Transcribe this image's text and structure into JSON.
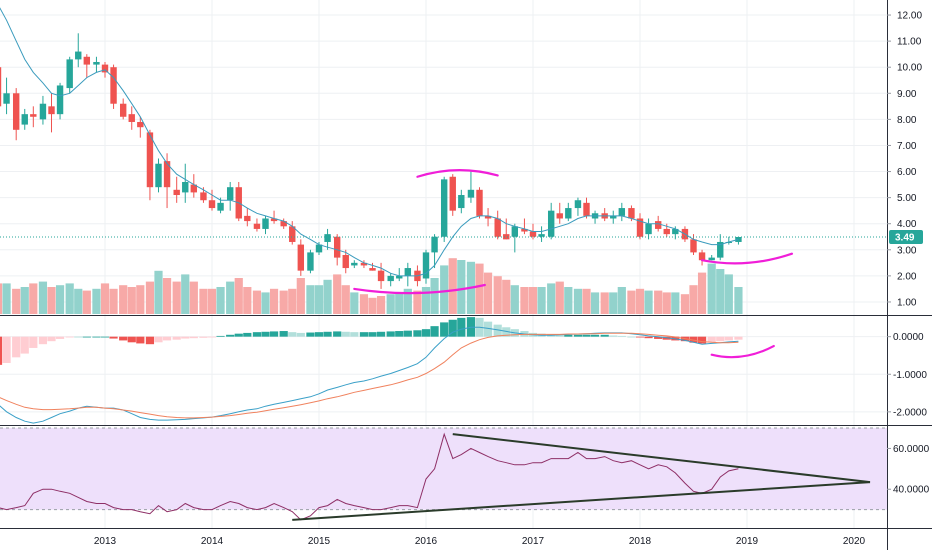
{
  "chart_data": {
    "type": "candlestick",
    "x_labels": [
      "2013",
      "2014",
      "2015",
      "2016",
      "2017",
      "2018",
      "2019",
      "2020"
    ],
    "last_price": "3.49",
    "colors": {
      "up": "#26a69a",
      "down": "#ef5350",
      "vol_up": "#92d2cc",
      "vol_down": "#f7a9a7",
      "ma": "#3a9bbd",
      "macd": "#3aa0c8",
      "signal": "#f0825e",
      "rsi": "#8e2f66",
      "rsi_band": "#eee0fb",
      "annotation": "#f01ed8",
      "trendline": "#2a3b2a"
    },
    "price_panel": {
      "ylim": [
        0.5,
        12.5
      ],
      "y_ticks": [
        "1.00",
        "2.00",
        "3.00",
        "4.00",
        "5.00",
        "6.00",
        "7.00",
        "8.00",
        "9.00",
        "10.00",
        "11.00",
        "12.00"
      ],
      "candles": [
        [
          2012.0,
          10.0,
          10.1,
          8.0,
          8.5
        ],
        [
          2012.08,
          8.6,
          9.6,
          8.2,
          9.0
        ],
        [
          2012.17,
          9.0,
          9.2,
          7.2,
          7.6
        ],
        [
          2012.25,
          7.8,
          8.4,
          7.6,
          8.2
        ],
        [
          2012.33,
          8.2,
          8.5,
          7.7,
          8.1
        ],
        [
          2012.42,
          8.0,
          8.9,
          7.8,
          8.6
        ],
        [
          2012.5,
          8.5,
          9.0,
          7.5,
          8.2
        ],
        [
          2012.58,
          8.2,
          9.4,
          8.0,
          9.3
        ],
        [
          2012.67,
          9.2,
          10.4,
          9.0,
          10.3
        ],
        [
          2012.75,
          10.3,
          11.3,
          10.0,
          10.6
        ],
        [
          2012.83,
          10.4,
          10.5,
          9.6,
          10.1
        ],
        [
          2012.92,
          10.1,
          10.4,
          9.8,
          10.2
        ],
        [
          2013.0,
          10.1,
          10.2,
          9.6,
          9.8
        ],
        [
          2013.08,
          10.0,
          10.1,
          8.4,
          8.6
        ],
        [
          2013.17,
          8.6,
          8.8,
          8.0,
          8.1
        ],
        [
          2013.25,
          8.2,
          8.5,
          7.6,
          7.9
        ],
        [
          2013.33,
          7.9,
          8.1,
          7.3,
          7.7
        ],
        [
          2013.42,
          7.5,
          7.6,
          4.9,
          5.4
        ],
        [
          2013.5,
          5.4,
          6.5,
          5.2,
          6.3
        ],
        [
          2013.58,
          6.4,
          6.7,
          4.6,
          5.4
        ],
        [
          2013.67,
          5.3,
          5.8,
          4.8,
          5.1
        ],
        [
          2013.75,
          5.2,
          6.3,
          4.8,
          5.6
        ],
        [
          2013.83,
          5.5,
          5.9,
          5.0,
          5.2
        ],
        [
          2013.92,
          5.2,
          5.4,
          4.8,
          4.9
        ],
        [
          2014.0,
          4.9,
          5.3,
          4.5,
          4.6
        ],
        [
          2014.08,
          4.5,
          5.0,
          4.4,
          4.8
        ],
        [
          2014.17,
          4.9,
          5.6,
          4.5,
          5.4
        ],
        [
          2014.25,
          5.4,
          5.6,
          4.1,
          4.2
        ],
        [
          2014.33,
          4.3,
          4.6,
          3.9,
          4.1
        ],
        [
          2014.42,
          4.0,
          4.2,
          3.7,
          3.8
        ],
        [
          2014.5,
          3.8,
          4.3,
          3.6,
          4.2
        ],
        [
          2014.58,
          4.2,
          4.5,
          4.0,
          4.1
        ],
        [
          2014.67,
          4.1,
          4.2,
          3.8,
          3.9
        ],
        [
          2014.75,
          3.9,
          4.1,
          3.2,
          3.3
        ],
        [
          2014.83,
          3.2,
          3.4,
          2.0,
          2.2
        ],
        [
          2014.92,
          2.2,
          3.0,
          2.1,
          2.9
        ],
        [
          2015.0,
          2.9,
          3.3,
          2.8,
          3.2
        ],
        [
          2015.08,
          3.3,
          3.8,
          3.0,
          3.6
        ],
        [
          2015.17,
          3.5,
          3.6,
          2.4,
          2.7
        ],
        [
          2015.25,
          2.8,
          3.0,
          2.1,
          2.3
        ],
        [
          2015.33,
          2.4,
          2.6,
          2.3,
          2.5
        ],
        [
          2015.42,
          2.5,
          2.6,
          2.3,
          2.4
        ],
        [
          2015.5,
          2.3,
          2.5,
          2.2,
          2.2
        ],
        [
          2015.58,
          2.2,
          2.5,
          1.5,
          1.8
        ],
        [
          2015.67,
          1.8,
          2.1,
          1.6,
          2.0
        ],
        [
          2015.75,
          1.9,
          2.3,
          1.8,
          2.0
        ],
        [
          2015.83,
          2.0,
          2.5,
          1.6,
          2.3
        ],
        [
          2015.92,
          2.2,
          2.4,
          1.6,
          1.8
        ],
        [
          2016.0,
          1.9,
          3.0,
          1.7,
          2.9
        ],
        [
          2016.08,
          2.9,
          3.6,
          2.3,
          3.5
        ],
        [
          2016.17,
          3.5,
          5.8,
          3.3,
          5.7
        ],
        [
          2016.25,
          5.8,
          5.9,
          4.3,
          4.5
        ],
        [
          2016.33,
          4.6,
          5.3,
          4.4,
          5.1
        ],
        [
          2016.42,
          5.0,
          6.0,
          4.8,
          5.3
        ],
        [
          2016.5,
          5.3,
          5.4,
          4.2,
          4.3
        ],
        [
          2016.58,
          4.3,
          4.6,
          3.9,
          4.2
        ],
        [
          2016.67,
          4.2,
          4.5,
          3.4,
          3.5
        ],
        [
          2016.75,
          3.6,
          4.2,
          3.4,
          3.4
        ],
        [
          2016.83,
          3.5,
          4.0,
          2.9,
          3.9
        ],
        [
          2016.92,
          3.8,
          4.2,
          3.6,
          3.7
        ],
        [
          2017.0,
          3.7,
          4.0,
          3.4,
          3.5
        ],
        [
          2017.08,
          3.5,
          3.9,
          3.3,
          3.6
        ],
        [
          2017.17,
          3.5,
          4.8,
          3.4,
          4.5
        ],
        [
          2017.25,
          4.4,
          4.8,
          4.0,
          4.2
        ],
        [
          2017.33,
          4.2,
          4.8,
          4.1,
          4.6
        ],
        [
          2017.42,
          4.6,
          5.0,
          4.3,
          4.9
        ],
        [
          2017.5,
          4.8,
          5.0,
          4.2,
          4.3
        ],
        [
          2017.58,
          4.2,
          4.5,
          4.0,
          4.4
        ],
        [
          2017.67,
          4.4,
          4.6,
          4.1,
          4.2
        ],
        [
          2017.75,
          4.2,
          4.5,
          4.0,
          4.3
        ],
        [
          2017.83,
          4.3,
          4.8,
          4.1,
          4.6
        ],
        [
          2017.92,
          4.6,
          4.7,
          4.1,
          4.2
        ],
        [
          2018.0,
          4.2,
          4.4,
          3.4,
          3.5
        ],
        [
          2018.08,
          3.6,
          4.2,
          3.4,
          4.0
        ],
        [
          2018.17,
          4.1,
          4.3,
          3.7,
          3.8
        ],
        [
          2018.25,
          3.8,
          4.0,
          3.5,
          3.6
        ],
        [
          2018.33,
          3.6,
          3.9,
          3.4,
          3.8
        ],
        [
          2018.42,
          3.8,
          3.9,
          3.3,
          3.4
        ],
        [
          2018.5,
          3.4,
          3.6,
          2.8,
          2.9
        ],
        [
          2018.58,
          2.9,
          3.0,
          2.4,
          2.6
        ],
        [
          2018.67,
          2.6,
          2.8,
          2.6,
          2.7
        ],
        [
          2018.75,
          2.7,
          3.6,
          2.6,
          3.3
        ],
        [
          2018.83,
          3.3,
          3.5,
          3.2,
          3.3
        ],
        [
          2018.92,
          3.3,
          3.5,
          3.2,
          3.49
        ]
      ]
    },
    "volume": [
      1.7,
      1.7,
      1.4,
      1.5,
      1.7,
      1.8,
      1.5,
      1.6,
      1.7,
      1.4,
      1.3,
      1.4,
      1.7,
      1.4,
      1.6,
      1.5,
      1.6,
      1.8,
      2.4,
      2.0,
      1.8,
      2.2,
      1.8,
      1.4,
      1.4,
      1.5,
      1.8,
      2.0,
      1.5,
      1.3,
      1.2,
      1.4,
      1.3,
      1.4,
      2.0,
      1.6,
      1.6,
      1.9,
      2.2,
      1.6,
      1.2,
      1.1,
      0.9,
      1.0,
      1.1,
      1.2,
      1.4,
      1.3,
      1.5,
      2.0,
      2.7,
      3.1,
      3.0,
      2.9,
      2.8,
      2.3,
      2.1,
      1.9,
      1.6,
      1.5,
      1.5,
      1.5,
      1.7,
      1.8,
      1.5,
      1.4,
      1.4,
      1.2,
      1.2,
      1.2,
      1.5,
      1.3,
      1.4,
      1.3,
      1.3,
      1.2,
      1.2,
      1.1,
      1.6,
      2.3,
      2.8,
      2.5,
      2.2,
      1.5
    ],
    "ma": [
      12.4,
      11.8,
      11.0,
      10.3,
      9.8,
      9.4,
      9.0,
      8.9,
      9.0,
      9.3,
      9.6,
      9.8,
      9.9,
      9.6,
      9.1,
      8.6,
      8.1,
      7.4,
      6.8,
      6.3,
      5.9,
      5.7,
      5.5,
      5.3,
      5.1,
      4.9,
      4.9,
      4.8,
      4.6,
      4.4,
      4.3,
      4.2,
      4.1,
      3.9,
      3.6,
      3.4,
      3.2,
      3.1,
      3.0,
      2.9,
      2.7,
      2.5,
      2.4,
      2.3,
      2.1,
      2.0,
      2.0,
      2.0,
      2.1,
      2.4,
      3.0,
      3.5,
      3.9,
      4.2,
      4.3,
      4.3,
      4.2,
      4.0,
      3.9,
      3.8,
      3.7,
      3.7,
      3.8,
      3.9,
      4.0,
      4.2,
      4.3,
      4.3,
      4.3,
      4.3,
      4.3,
      4.2,
      4.1,
      4.0,
      4.0,
      3.9,
      3.8,
      3.6,
      3.4,
      3.3,
      3.2,
      3.2,
      3.3,
      3.4
    ],
    "macd_panel": {
      "ylim": [
        -2.35,
        0.55
      ],
      "y_ticks": [
        "0.0000",
        "-1.0000",
        "-2.0000"
      ],
      "hist": [
        -0.75,
        -0.7,
        -0.55,
        -0.45,
        -0.3,
        -0.2,
        -0.12,
        -0.06,
        -0.02,
        0.0,
        0.0,
        0.0,
        0.0,
        -0.05,
        -0.1,
        -0.15,
        -0.18,
        -0.2,
        -0.15,
        -0.1,
        -0.08,
        -0.05,
        -0.04,
        -0.03,
        -0.02,
        0.02,
        0.05,
        0.08,
        0.1,
        0.12,
        0.13,
        0.14,
        0.15,
        0.12,
        0.1,
        0.11,
        0.12,
        0.13,
        0.14,
        0.13,
        0.12,
        0.12,
        0.12,
        0.13,
        0.14,
        0.15,
        0.16,
        0.17,
        0.2,
        0.28,
        0.38,
        0.45,
        0.5,
        0.52,
        0.5,
        0.4,
        0.32,
        0.25,
        0.2,
        0.15,
        0.1,
        0.08,
        0.06,
        0.05,
        0.05,
        0.05,
        0.05,
        0.05,
        0.05,
        0.03,
        0.02,
        0.0,
        -0.02,
        -0.04,
        -0.06,
        -0.08,
        -0.1,
        -0.12,
        -0.16,
        -0.18,
        -0.15,
        -0.12,
        -0.1,
        -0.08
      ],
      "macd": [
        -1.8,
        -2.0,
        -2.15,
        -2.25,
        -2.3,
        -2.25,
        -2.15,
        -2.05,
        -1.98,
        -1.9,
        -1.85,
        -1.88,
        -1.9,
        -1.9,
        -1.95,
        -2.05,
        -2.15,
        -2.2,
        -2.22,
        -2.22,
        -2.21,
        -2.2,
        -2.18,
        -2.16,
        -2.14,
        -2.1,
        -2.05,
        -2.0,
        -1.95,
        -1.92,
        -1.85,
        -1.8,
        -1.75,
        -1.7,
        -1.65,
        -1.6,
        -1.52,
        -1.42,
        -1.35,
        -1.28,
        -1.22,
        -1.18,
        -1.12,
        -1.05,
        -0.98,
        -0.9,
        -0.82,
        -0.72,
        -0.55,
        -0.3,
        -0.05,
        0.12,
        0.2,
        0.25,
        0.25,
        0.22,
        0.18,
        0.14,
        0.1,
        0.07,
        0.05,
        0.04,
        0.04,
        0.05,
        0.06,
        0.07,
        0.08,
        0.09,
        0.1,
        0.1,
        0.1,
        0.08,
        0.05,
        0.02,
        0.0,
        -0.03,
        -0.06,
        -0.1,
        -0.15,
        -0.2,
        -0.18,
        -0.16,
        -0.14,
        -0.12
      ],
      "signal": [
        -1.6,
        -1.7,
        -1.8,
        -1.88,
        -1.92,
        -1.94,
        -1.94,
        -1.93,
        -1.92,
        -1.9,
        -1.88,
        -1.88,
        -1.9,
        -1.92,
        -1.95,
        -1.98,
        -2.02,
        -2.06,
        -2.1,
        -2.13,
        -2.15,
        -2.16,
        -2.16,
        -2.15,
        -2.14,
        -2.12,
        -2.1,
        -2.07,
        -2.04,
        -2.01,
        -1.97,
        -1.93,
        -1.89,
        -1.85,
        -1.81,
        -1.76,
        -1.71,
        -1.65,
        -1.6,
        -1.54,
        -1.48,
        -1.43,
        -1.38,
        -1.33,
        -1.28,
        -1.22,
        -1.15,
        -1.08,
        -0.98,
        -0.85,
        -0.68,
        -0.48,
        -0.3,
        -0.17,
        -0.08,
        -0.02,
        0.02,
        0.04,
        0.05,
        0.06,
        0.06,
        0.06,
        0.06,
        0.06,
        0.07,
        0.07,
        0.08,
        0.08,
        0.09,
        0.09,
        0.09,
        0.09,
        0.08,
        0.06,
        0.04,
        0.02,
        -0.01,
        -0.05,
        -0.09,
        -0.13,
        -0.15,
        -0.16,
        -0.16,
        -0.15
      ]
    },
    "rsi_panel": {
      "ylim": [
        21,
        71
      ],
      "y_ticks": [
        "60.0000",
        "40.0000"
      ],
      "band": [
        30,
        70
      ],
      "values": [
        31,
        30,
        31,
        32,
        38,
        40,
        40,
        39,
        38,
        36,
        34,
        33,
        33,
        31,
        30,
        30,
        29,
        28,
        32,
        29,
        30,
        33,
        31,
        30,
        30,
        32,
        34,
        33,
        31,
        30,
        31,
        33,
        31,
        29,
        25,
        27,
        31,
        32,
        35,
        33,
        32,
        31,
        30,
        30,
        31,
        32,
        32,
        31,
        45,
        50,
        67,
        55,
        57,
        60,
        58,
        56,
        54,
        53,
        52,
        52,
        53,
        53,
        55,
        55,
        55,
        58,
        55,
        55,
        56,
        54,
        53,
        54,
        52,
        50,
        52,
        51,
        48,
        43,
        39,
        38,
        40,
        46,
        49,
        50
      ]
    },
    "rsi_trendlines": [
      [
        [
          2014.75,
          25
        ],
        [
          2020.15,
          43.5
        ]
      ],
      [
        [
          2016.25,
          67
        ],
        [
          2020.15,
          43.5
        ]
      ]
    ],
    "annotation_arcs": [
      {
        "panel": "price",
        "from": [
          2015.33,
          1.5
        ],
        "to": [
          2016.55,
          1.65
        ],
        "bulge": "down"
      },
      {
        "panel": "price",
        "from": [
          2015.92,
          5.8
        ],
        "to": [
          2016.67,
          5.85
        ],
        "bulge": "up"
      },
      {
        "panel": "price",
        "from": [
          2018.58,
          2.6
        ],
        "to": [
          2019.42,
          2.85
        ],
        "bulge": "down"
      },
      {
        "panel": "macd",
        "from": [
          2018.67,
          -0.48
        ],
        "to": [
          2019.25,
          -0.25
        ],
        "bulge": "down"
      }
    ]
  }
}
